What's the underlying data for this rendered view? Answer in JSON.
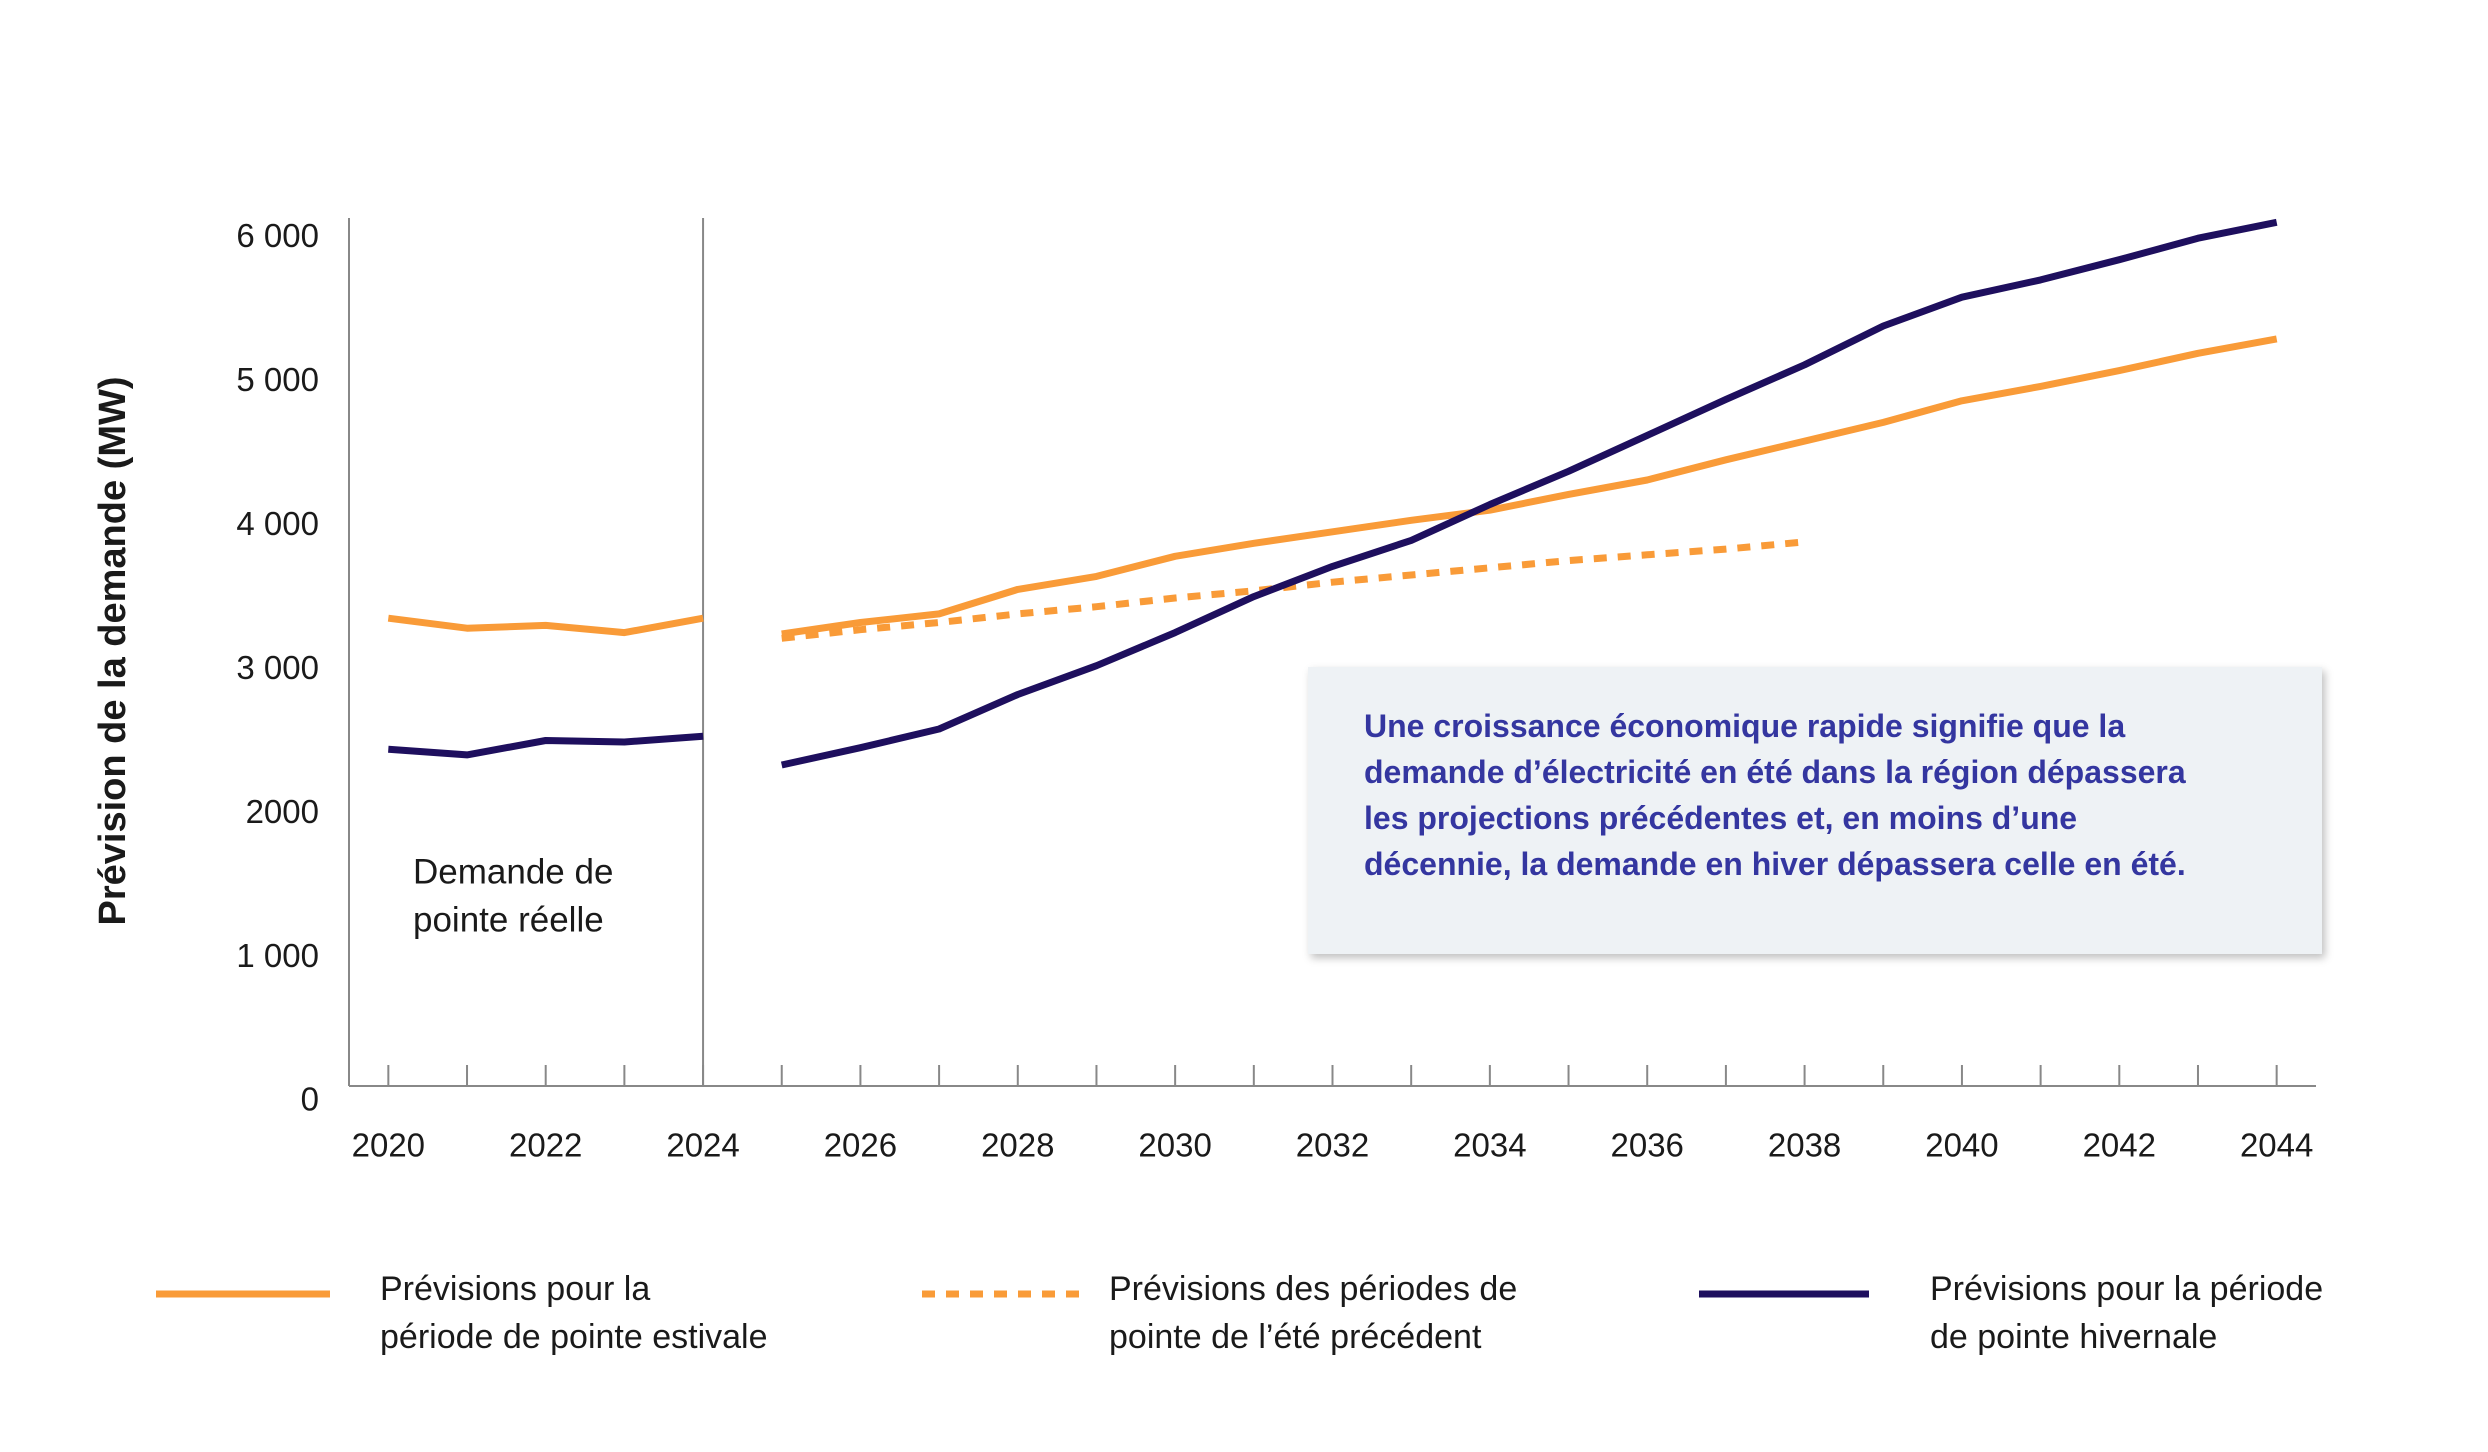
{
  "chart_data": {
    "type": "line",
    "y_label": "Prévision de la demande (MW)",
    "xlim": [
      2019.5,
      2044.5
    ],
    "xticks": [
      2020,
      2022,
      2024,
      2026,
      2028,
      2030,
      2032,
      2034,
      2036,
      2038,
      2040,
      2042,
      2044
    ],
    "ylim": [
      0,
      6030
    ],
    "yticks": [
      0,
      {
        "value": 1000,
        "label": "1 000"
      },
      2000,
      {
        "value": 3000,
        "label": "3 000"
      },
      {
        "value": 4000,
        "label": "4 000"
      },
      {
        "value": 5000,
        "label": "5 000"
      },
      {
        "value": 6000,
        "label": "6 000"
      }
    ],
    "grid": false,
    "divider": {
      "x": 2024,
      "label": [
        "Demande de",
        "pointe réelle"
      ]
    },
    "callout": [
      "Une croissance économique rapide signifie que la",
      "demande d’électricité en été dans la région dépassera",
      "les projections précédentes et, en moins d’une",
      "décennie, la demande en hiver dépassera celle en été."
    ],
    "series": [
      {
        "color": "#f99b38",
        "dash": false,
        "x": [
          2020,
          2021,
          2022,
          2023,
          2024
        ],
        "values": [
          3250,
          3180,
          3200,
          3150,
          3250
        ]
      },
      {
        "color": "#1e0f5e",
        "dash": false,
        "x": [
          2020,
          2021,
          2022,
          2023,
          2024
        ],
        "values": [
          2340,
          2300,
          2400,
          2390,
          2430
        ]
      },
      {
        "name": [
          "Prévisions pour la",
          "période de pointe estivale"
        ],
        "color": "#f99b38",
        "dash": false,
        "x": [
          2025,
          2026,
          2027,
          2028,
          2029,
          2030,
          2031,
          2032,
          2033,
          2034,
          2035,
          2036,
          2037,
          2038,
          2039,
          2040,
          2041,
          2042,
          2043,
          2044
        ],
        "values": [
          3140,
          3220,
          3280,
          3450,
          3540,
          3680,
          3770,
          3850,
          3930,
          4000,
          4110,
          4210,
          4350,
          4480,
          4610,
          4760,
          4860,
          4970,
          5090,
          5190
        ]
      },
      {
        "name": [
          "Prévisions des périodes de",
          "pointe de l’été précédent"
        ],
        "color": "#f99b38",
        "dash": true,
        "x": [
          2025,
          2026,
          2027,
          2028,
          2029,
          2030,
          2031,
          2032,
          2033,
          2034,
          2035,
          2036,
          2037,
          2038
        ],
        "values": [
          3110,
          3170,
          3220,
          3280,
          3330,
          3390,
          3440,
          3500,
          3550,
          3600,
          3650,
          3690,
          3730,
          3780
        ]
      },
      {
        "name": [
          "Prévisions pour la période",
          "de pointe hivernale"
        ],
        "color": "#1e0f5e",
        "dash": false,
        "x": [
          2025,
          2026,
          2027,
          2028,
          2029,
          2030,
          2031,
          2032,
          2033,
          2034,
          2035,
          2036,
          2037,
          2038,
          2039,
          2040,
          2041,
          2042,
          2043,
          2044
        ],
        "values": [
          2230,
          2350,
          2480,
          2720,
          2920,
          3150,
          3400,
          3610,
          3790,
          4040,
          4270,
          4520,
          4770,
          5010,
          5280,
          5480,
          5600,
          5740,
          5890,
          6000
        ]
      }
    ]
  }
}
